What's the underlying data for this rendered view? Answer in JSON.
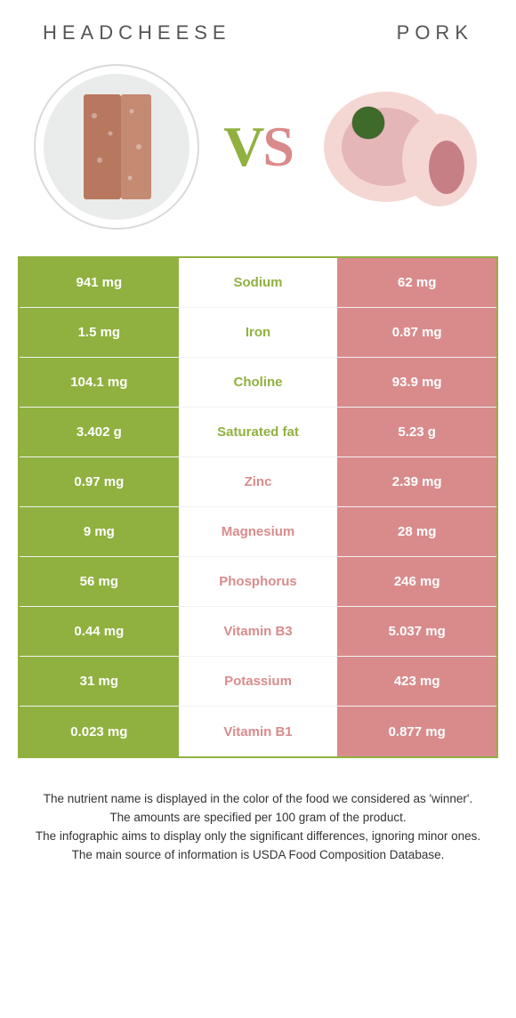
{
  "colors": {
    "left": "#90b13f",
    "right": "#d98b8c",
    "border": "#90b13f",
    "vs_left": "#90b13f",
    "vs_right": "#d98b8c",
    "plate": "#e9eceb",
    "meat1": "#b87860",
    "pork_light": "#f4d7d3",
    "pork_dark": "#d89aa0",
    "green_garnish": "#3e6b2a"
  },
  "titles": {
    "left": "Headcheese",
    "right": "Pork"
  },
  "vs_label": "VS",
  "rows": [
    {
      "left": "941 mg",
      "label": "Sodium",
      "right": "62 mg",
      "winner": "left"
    },
    {
      "left": "1.5 mg",
      "label": "Iron",
      "right": "0.87 mg",
      "winner": "left"
    },
    {
      "left": "104.1 mg",
      "label": "Choline",
      "right": "93.9 mg",
      "winner": "left"
    },
    {
      "left": "3.402 g",
      "label": "Saturated fat",
      "right": "5.23 g",
      "winner": "left"
    },
    {
      "left": "0.97 mg",
      "label": "Zinc",
      "right": "2.39 mg",
      "winner": "right"
    },
    {
      "left": "9 mg",
      "label": "Magnesium",
      "right": "28 mg",
      "winner": "right"
    },
    {
      "left": "56 mg",
      "label": "Phosphorus",
      "right": "246 mg",
      "winner": "right"
    },
    {
      "left": "0.44 mg",
      "label": "Vitamin B3",
      "right": "5.037 mg",
      "winner": "right"
    },
    {
      "left": "31 mg",
      "label": "Potassium",
      "right": "423 mg",
      "winner": "right"
    },
    {
      "left": "0.023 mg",
      "label": "Vitamin B1",
      "right": "0.877 mg",
      "winner": "right"
    }
  ],
  "footer": [
    "The nutrient name is displayed in the color of the food we considered as 'winner'.",
    "The amounts are specified per 100 gram of the product.",
    "The infographic aims to display only the significant differences, ignoring minor ones.",
    "The main source of information is USDA Food Composition Database."
  ]
}
